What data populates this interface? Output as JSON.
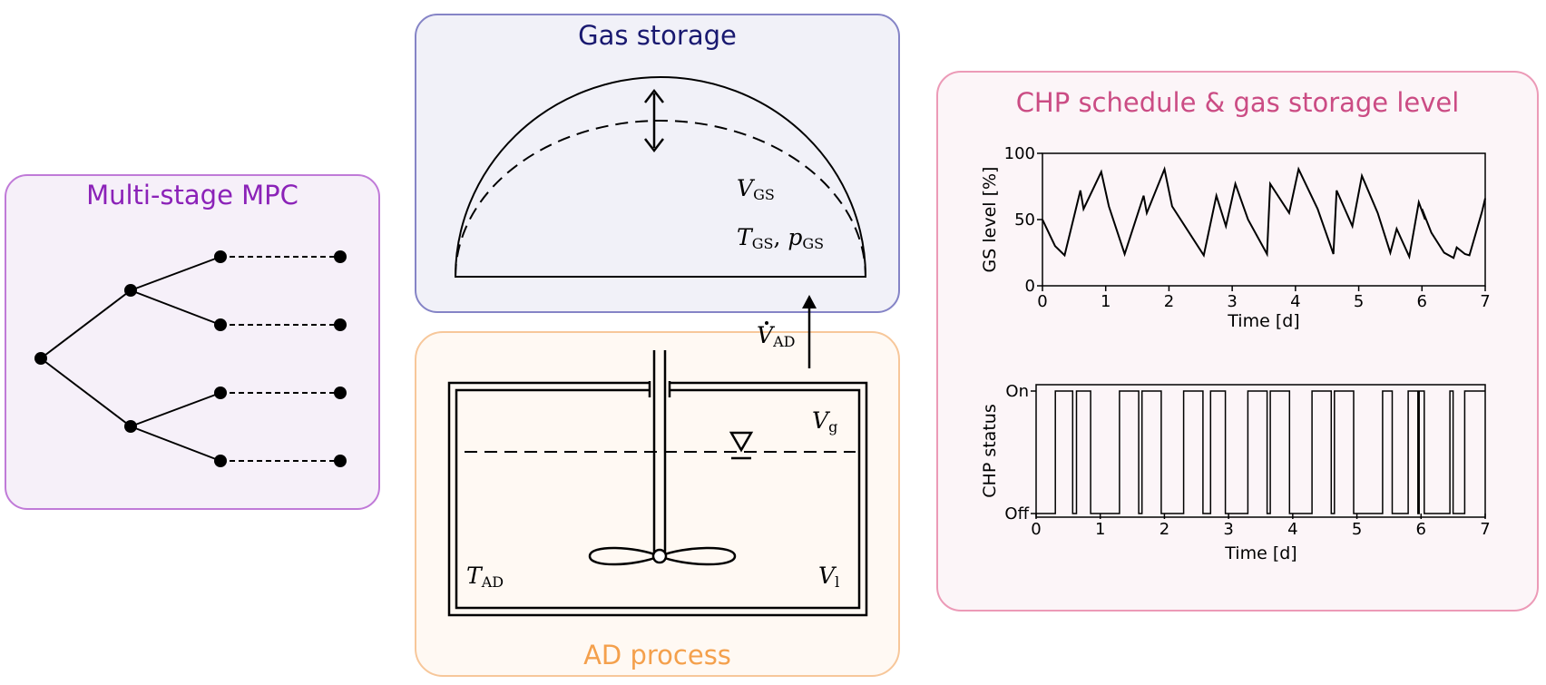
{
  "mpc_panel": {
    "title": "Multi-stage MPC",
    "color": "#8b22b8",
    "border": "#c07ad8",
    "fill": "#f6f0f9"
  },
  "gas_storage_panel": {
    "title": "Gas storage",
    "color": "#191970",
    "border": "#8584c6",
    "fill": "#f1f1f8",
    "labels": {
      "volume_main": "V",
      "volume_sub": "GS",
      "t_main": "T",
      "t_sub": "GS",
      "p_main": "p",
      "p_sub": "GS"
    }
  },
  "ad_panel": {
    "title": "AD process",
    "color": "#f4a04c",
    "border": "#f7c79a",
    "fill": "#fff9f3",
    "labels": {
      "flow_main": "V",
      "flow_sub": "AD",
      "vg_main": "V",
      "vg_sub": "g",
      "t_main": "T",
      "t_sub": "AD",
      "vl_main": "V",
      "vl_sub": "l"
    }
  },
  "chp_panel": {
    "title": "CHP schedule & gas storage level",
    "color": "#cb4c84",
    "border": "#ec9ab7",
    "fill": "#fcf5f8"
  },
  "chart_data": [
    {
      "type": "line",
      "xlabel": "Time [d]",
      "ylabel": "GS level [%]",
      "xlim": [
        0,
        7
      ],
      "ylim": [
        0,
        100
      ],
      "xticks": [
        "0",
        "1",
        "2",
        "3",
        "4",
        "5",
        "6",
        "7"
      ],
      "yticks": [
        "0",
        "50",
        "100"
      ],
      "x": [
        0,
        0.2,
        0.35,
        0.6,
        0.65,
        0.93,
        1.05,
        1.3,
        1.6,
        1.65,
        1.93,
        2.05,
        2.55,
        2.75,
        2.9,
        3.05,
        3.25,
        3.55,
        3.6,
        3.9,
        4.05,
        4.35,
        4.6,
        4.65,
        4.9,
        5.05,
        5.3,
        5.5,
        5.6,
        5.8,
        5.95,
        6.05,
        6.0,
        6.15,
        6.35,
        6.5,
        6.55,
        6.68,
        6.75,
        6.95,
        7.0
      ],
      "y": [
        50,
        30,
        23,
        72,
        58,
        86,
        60,
        24,
        68,
        55,
        88,
        60,
        23,
        68,
        45,
        77,
        50,
        24,
        77,
        55,
        88,
        58,
        24,
        72,
        45,
        83,
        55,
        25,
        43,
        22,
        63,
        50,
        58,
        40,
        25,
        21,
        29,
        24,
        23,
        56,
        66
      ],
      "grid": false
    },
    {
      "type": "line",
      "xlabel": "Time [d]",
      "ylabel": "CHP status",
      "xlim": [
        0,
        7
      ],
      "ylim": [
        0,
        1
      ],
      "xticks": [
        "0",
        "1",
        "2",
        "3",
        "4",
        "5",
        "6",
        "7"
      ],
      "yticks": [
        "Off",
        "On"
      ],
      "x": [
        0,
        0.3,
        0.3,
        0.57,
        0.57,
        0.63,
        0.63,
        0.85,
        0.85,
        1.3,
        1.3,
        1.6,
        1.6,
        1.65,
        1.65,
        1.95,
        1.95,
        2.3,
        2.3,
        2.6,
        2.6,
        2.72,
        2.72,
        2.95,
        2.95,
        3.3,
        3.3,
        3.6,
        3.6,
        3.65,
        3.65,
        3.95,
        3.95,
        4.3,
        4.3,
        4.6,
        4.6,
        4.65,
        4.65,
        4.95,
        4.95,
        5.4,
        5.4,
        5.55,
        5.55,
        5.8,
        5.8,
        5.95,
        5.95,
        5.97,
        5.97,
        6.05,
        6.05,
        6.45,
        6.45,
        6.5,
        6.5,
        6.68,
        6.68,
        7.0
      ],
      "y": [
        0,
        0,
        1,
        1,
        0,
        0,
        1,
        1,
        0,
        0,
        1,
        1,
        0,
        0,
        1,
        1,
        0,
        0,
        1,
        1,
        0,
        0,
        1,
        1,
        0,
        0,
        1,
        1,
        0,
        0,
        1,
        1,
        0,
        0,
        1,
        1,
        0,
        0,
        1,
        1,
        0,
        0,
        1,
        1,
        0,
        0,
        1,
        1,
        0,
        0,
        1,
        1,
        0,
        0,
        1,
        1,
        0,
        0,
        1,
        1
      ],
      "grid": false
    }
  ]
}
